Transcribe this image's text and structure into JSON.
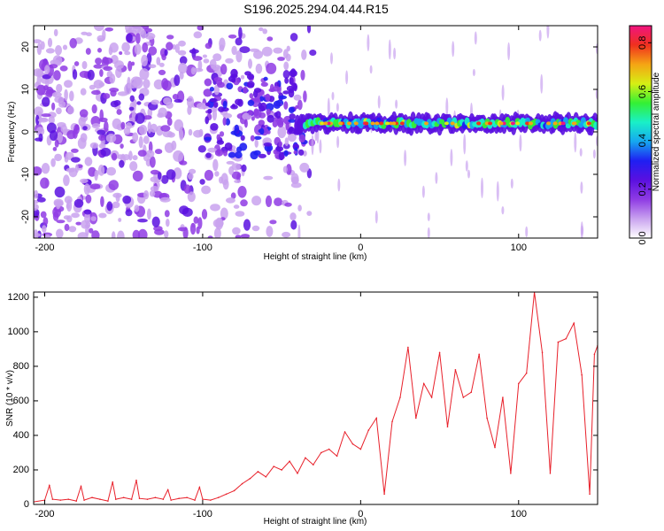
{
  "figure_title": "S196.2025.294.04.44.R15",
  "colors": {
    "snr_line": "#e8202a",
    "axis": "#000000",
    "colormap": [
      "#ffffff",
      "#c9a2ef",
      "#8f3be4",
      "#5a10e0",
      "#1f1ff2",
      "#16a8f0",
      "#19f0c8",
      "#34f034",
      "#d6ef14",
      "#f5a414",
      "#f0301e",
      "#f01480"
    ]
  },
  "chart_data": [
    {
      "type": "heatmap",
      "title": "",
      "xlabel": "Height of straight line (km)",
      "ylabel": "Frequency (Hz)",
      "xlim": [
        -207,
        150
      ],
      "ylim": [
        -25,
        25
      ],
      "xticks": [
        -200,
        -100,
        0,
        100
      ],
      "xtick_labels": [
        "-200",
        "-100",
        "0",
        "100"
      ],
      "yticks": [
        20,
        10,
        0,
        -10,
        -20
      ],
      "ytick_labels": [
        "20",
        "10",
        "0",
        "-10",
        "-20"
      ],
      "band_center_hz": 2,
      "band_start_km": -40,
      "colorbar": {
        "label": "Normalized spectral amplitude",
        "range": [
          0,
          0.87
        ],
        "ticks": [
          0.0,
          0.2,
          0.4,
          0.6,
          0.8
        ],
        "tick_labels": [
          "0.0",
          "0.2",
          "0.4",
          "0.6",
          "0.8"
        ]
      }
    },
    {
      "type": "line",
      "title": "",
      "xlabel": "Height of straight line (km)",
      "ylabel": "SNR (10 * v/v)",
      "xlim": [
        -207,
        150
      ],
      "ylim": [
        0,
        1230
      ],
      "xticks": [
        -200,
        -100,
        0,
        100
      ],
      "xtick_labels": [
        "-200",
        "-100",
        "0",
        "100"
      ],
      "yticks": [
        0,
        200,
        400,
        600,
        800,
        1000,
        1200
      ],
      "ytick_labels": [
        "0",
        "200",
        "400",
        "600",
        "800",
        "1000",
        "1200"
      ],
      "series": [
        {
          "name": "SNR",
          "x": [
            -207,
            -200,
            -197,
            -195,
            -190,
            -185,
            -180,
            -177,
            -175,
            -170,
            -165,
            -160,
            -157,
            -155,
            -150,
            -145,
            -142,
            -140,
            -135,
            -130,
            -125,
            -122,
            -120,
            -115,
            -110,
            -105,
            -102,
            -100,
            -95,
            -90,
            -85,
            -80,
            -75,
            -70,
            -65,
            -60,
            -55,
            -50,
            -45,
            -40,
            -35,
            -30,
            -25,
            -20,
            -15,
            -10,
            -5,
            0,
            5,
            10,
            15,
            20,
            25,
            30,
            35,
            40,
            45,
            50,
            55,
            60,
            65,
            70,
            75,
            80,
            85,
            90,
            95,
            100,
            105,
            110,
            115,
            120,
            125,
            130,
            135,
            140,
            145,
            148,
            150
          ],
          "values": [
            15,
            25,
            110,
            30,
            25,
            30,
            20,
            105,
            25,
            40,
            30,
            20,
            130,
            30,
            40,
            30,
            140,
            35,
            30,
            40,
            30,
            85,
            25,
            35,
            40,
            25,
            100,
            30,
            25,
            40,
            60,
            80,
            120,
            150,
            190,
            160,
            220,
            200,
            250,
            180,
            270,
            230,
            300,
            320,
            280,
            420,
            350,
            320,
            430,
            500,
            60,
            480,
            620,
            910,
            500,
            700,
            620,
            880,
            450,
            780,
            620,
            650,
            870,
            500,
            330,
            620,
            180,
            700,
            760,
            1230,
            880,
            180,
            940,
            960,
            1050,
            750,
            60,
            870,
            920
          ]
        }
      ]
    }
  ]
}
